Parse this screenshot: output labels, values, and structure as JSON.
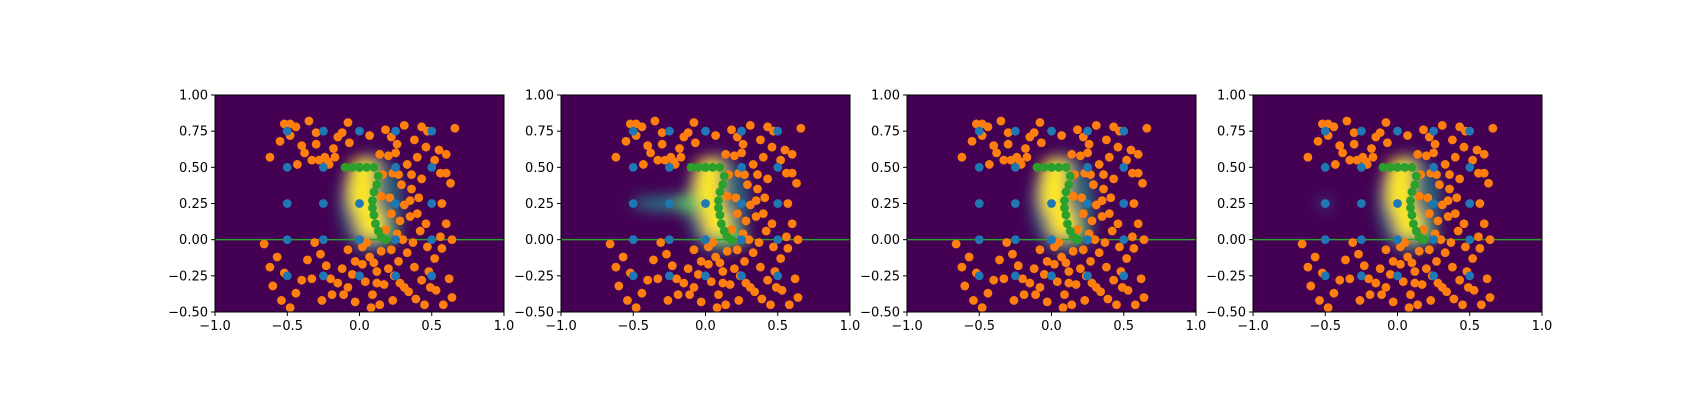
{
  "figure": {
    "panel_count": 4
  },
  "chart_data": [
    {
      "type": "scatter",
      "background": "heatmap",
      "title": "",
      "xlabel": "",
      "ylabel": "",
      "xlim": [
        -1.0,
        1.0
      ],
      "ylim": [
        -0.5,
        1.0
      ],
      "x_ticks": [
        "-1.0",
        "-0.5",
        "0.0",
        "0.5",
        "1.0"
      ],
      "y_ticks": [
        "-0.50",
        "-0.25",
        "0.00",
        "0.25",
        "0.50",
        "0.75",
        "1.00"
      ],
      "colormap": [
        "#440154",
        "#3b528b",
        "#21918c",
        "#5ec962",
        "#fde725"
      ],
      "heatmap_variant": "base",
      "baseline": {
        "y": 0.0,
        "color": "#2ca02c"
      },
      "series": [
        {
          "color": "#ff7f0e",
          "points": "orange_points"
        },
        {
          "color": "#1f77b4",
          "points": "blue_points"
        },
        {
          "color": "#2ca02c",
          "points": "green_points"
        }
      ]
    },
    {
      "type": "scatter",
      "background": "heatmap",
      "title": "",
      "xlabel": "",
      "ylabel": "",
      "xlim": [
        -1.0,
        1.0
      ],
      "ylim": [
        -0.5,
        1.0
      ],
      "x_ticks": [
        "-1.0",
        "-0.5",
        "0.0",
        "0.5",
        "1.0"
      ],
      "y_ticks": [
        "-0.50",
        "-0.25",
        "0.00",
        "0.25",
        "0.50",
        "0.75",
        "1.00"
      ],
      "colormap": [
        "#440154",
        "#3b528b",
        "#21918c",
        "#5ec962",
        "#fde725"
      ],
      "heatmap_variant": "left_arm_strong",
      "baseline": {
        "y": 0.0,
        "color": "#2ca02c"
      },
      "series": [
        {
          "color": "#ff7f0e",
          "points": "orange_points"
        },
        {
          "color": "#1f77b4",
          "points": "blue_points"
        },
        {
          "color": "#2ca02c",
          "points": "green_points"
        }
      ]
    },
    {
      "type": "scatter",
      "background": "heatmap",
      "title": "",
      "xlabel": "",
      "ylabel": "",
      "xlim": [
        -1.0,
        1.0
      ],
      "ylim": [
        -0.5,
        1.0
      ],
      "x_ticks": [
        "-1.0",
        "-0.5",
        "0.0",
        "0.5",
        "1.0"
      ],
      "y_ticks": [
        "-0.50",
        "-0.25",
        "0.00",
        "0.25",
        "0.50",
        "0.75",
        "1.00"
      ],
      "colormap": [
        "#440154",
        "#3b528b",
        "#21918c",
        "#5ec962",
        "#fde725"
      ],
      "heatmap_variant": "base",
      "baseline": {
        "y": 0.0,
        "color": "#2ca02c"
      },
      "series": [
        {
          "color": "#ff7f0e",
          "points": "orange_points"
        },
        {
          "color": "#1f77b4",
          "points": "blue_points"
        },
        {
          "color": "#2ca02c",
          "points": "green_points"
        }
      ]
    },
    {
      "type": "scatter",
      "background": "heatmap",
      "title": "",
      "xlabel": "",
      "ylabel": "",
      "xlim": [
        -1.0,
        1.0
      ],
      "ylim": [
        -0.5,
        1.0
      ],
      "x_ticks": [
        "-1.0",
        "-0.5",
        "0.0",
        "0.5",
        "1.0"
      ],
      "y_ticks": [
        "-0.50",
        "-0.25",
        "0.00",
        "0.25",
        "0.50",
        "0.75",
        "1.00"
      ],
      "colormap": [
        "#440154",
        "#3b528b",
        "#21918c",
        "#5ec962",
        "#fde725"
      ],
      "heatmap_variant": "left_spot",
      "baseline": {
        "y": 0.0,
        "color": "#2ca02c"
      },
      "series": [
        {
          "color": "#ff7f0e",
          "points": "orange_points"
        },
        {
          "color": "#1f77b4",
          "points": "blue_points"
        },
        {
          "color": "#2ca02c",
          "points": "green_points"
        }
      ]
    }
  ],
  "point_sets": {
    "blue_points": [
      [
        -0.5,
        0.75
      ],
      [
        -0.5,
        0.5
      ],
      [
        -0.5,
        0.25
      ],
      [
        -0.5,
        0.0
      ],
      [
        -0.5,
        -0.25
      ],
      [
        -0.25,
        0.75
      ],
      [
        -0.25,
        0.5
      ],
      [
        -0.25,
        0.25
      ],
      [
        -0.25,
        0.0
      ],
      [
        -0.25,
        -0.25
      ],
      [
        0.0,
        0.75
      ],
      [
        0.0,
        0.5
      ],
      [
        0.0,
        0.25
      ],
      [
        0.0,
        0.0
      ],
      [
        0.0,
        -0.25
      ],
      [
        0.25,
        0.75
      ],
      [
        0.25,
        0.5
      ],
      [
        0.25,
        0.25
      ],
      [
        0.25,
        0.0
      ],
      [
        0.25,
        -0.25
      ],
      [
        0.5,
        0.75
      ],
      [
        0.5,
        0.5
      ],
      [
        0.5,
        0.25
      ],
      [
        0.5,
        0.0
      ],
      [
        0.5,
        -0.25
      ]
    ],
    "green_points": [
      [
        -0.1,
        0.5
      ],
      [
        -0.05,
        0.5
      ],
      [
        0.0,
        0.5
      ],
      [
        0.05,
        0.5
      ],
      [
        0.1,
        0.5
      ],
      [
        0.13,
        0.44
      ],
      [
        0.12,
        0.38
      ],
      [
        0.1,
        0.33
      ],
      [
        0.09,
        0.27
      ],
      [
        0.09,
        0.22
      ],
      [
        0.1,
        0.17
      ],
      [
        0.11,
        0.11
      ],
      [
        0.13,
        0.06
      ],
      [
        0.15,
        0.02
      ],
      [
        0.18,
        0.0
      ]
    ],
    "orange_points": [
      [
        -0.62,
        0.57
      ],
      [
        -0.55,
        0.68
      ],
      [
        -0.52,
        0.8
      ],
      [
        -0.48,
        0.72
      ],
      [
        -0.43,
        0.52
      ],
      [
        -0.48,
        0.8
      ],
      [
        -0.44,
        0.78
      ],
      [
        -0.4,
        0.65
      ],
      [
        -0.35,
        0.82
      ],
      [
        -0.3,
        0.74
      ],
      [
        -0.28,
        0.55
      ],
      [
        -0.22,
        0.54
      ],
      [
        -0.18,
        0.63
      ],
      [
        -0.15,
        0.71
      ],
      [
        -0.21,
        0.52
      ],
      [
        -0.24,
        0.57
      ],
      [
        -0.17,
        0.57
      ],
      [
        -0.12,
        0.74
      ],
      [
        -0.08,
        0.81
      ],
      [
        -0.07,
        0.67
      ],
      [
        0.07,
        0.72
      ],
      [
        0.14,
        0.59
      ],
      [
        0.22,
        0.71
      ],
      [
        0.25,
        0.6
      ],
      [
        0.26,
        0.66
      ],
      [
        0.27,
        0.45
      ],
      [
        0.31,
        0.79
      ],
      [
        0.33,
        0.52
      ],
      [
        0.38,
        0.69
      ],
      [
        0.4,
        0.57
      ],
      [
        0.43,
        0.78
      ],
      [
        0.46,
        0.64
      ],
      [
        0.47,
        0.75
      ],
      [
        0.52,
        0.55
      ],
      [
        0.55,
        0.62
      ],
      [
        0.56,
        0.46
      ],
      [
        0.6,
        0.59
      ],
      [
        0.6,
        0.46
      ],
      [
        0.66,
        0.77
      ],
      [
        0.63,
        0.39
      ],
      [
        0.2,
        0.58
      ],
      [
        0.23,
        0.46
      ],
      [
        0.16,
        0.45
      ],
      [
        0.29,
        0.38
      ],
      [
        0.36,
        0.35
      ],
      [
        0.31,
        0.24
      ],
      [
        0.28,
        0.13
      ],
      [
        0.41,
        0.29
      ],
      [
        0.46,
        0.11
      ],
      [
        0.42,
        0.06
      ],
      [
        0.35,
        0.16
      ],
      [
        0.21,
        0.29
      ],
      [
        0.22,
        0.18
      ],
      [
        0.18,
        0.07
      ],
      [
        0.26,
        0.04
      ],
      [
        0.3,
        0.0
      ],
      [
        0.37,
        -0.02
      ],
      [
        0.47,
        -0.05
      ],
      [
        0.52,
        -0.13
      ],
      [
        0.57,
        -0.06
      ],
      [
        0.6,
        0.11
      ],
      [
        0.64,
        0.0
      ],
      [
        0.57,
        0.25
      ],
      [
        0.43,
        0.42
      ],
      [
        0.36,
        0.45
      ],
      [
        0.22,
        -0.07
      ],
      [
        0.27,
        -0.15
      ],
      [
        0.33,
        -0.09
      ],
      [
        0.38,
        -0.19
      ],
      [
        0.43,
        -0.28
      ],
      [
        0.48,
        -0.22
      ],
      [
        0.53,
        -0.35
      ],
      [
        0.58,
        -0.45
      ],
      [
        0.62,
        -0.27
      ],
      [
        0.64,
        -0.4
      ],
      [
        0.34,
        -0.36
      ],
      [
        0.28,
        -0.3
      ],
      [
        0.23,
        -0.42
      ],
      [
        0.17,
        -0.31
      ],
      [
        0.12,
        -0.22
      ],
      [
        0.07,
        -0.12
      ],
      [
        0.02,
        -0.05
      ],
      [
        -0.03,
        -0.15
      ],
      [
        -0.08,
        -0.07
      ],
      [
        -0.12,
        -0.2
      ],
      [
        -0.15,
        -0.3
      ],
      [
        -0.19,
        -0.38
      ],
      [
        -0.23,
        -0.18
      ],
      [
        -0.27,
        -0.1
      ],
      [
        -0.31,
        -0.02
      ],
      [
        -0.36,
        -0.14
      ],
      [
        -0.4,
        -0.28
      ],
      [
        -0.44,
        -0.37
      ],
      [
        -0.48,
        -0.47
      ],
      [
        -0.52,
        -0.23
      ],
      [
        -0.57,
        -0.12
      ],
      [
        -0.62,
        -0.19
      ],
      [
        -0.66,
        -0.03
      ],
      [
        -0.6,
        -0.32
      ],
      [
        -0.54,
        -0.42
      ],
      [
        -0.33,
        -0.27
      ],
      [
        -0.26,
        -0.42
      ],
      [
        -0.08,
        -0.33
      ],
      [
        -0.03,
        -0.43
      ],
      [
        0.04,
        -0.29
      ],
      [
        0.09,
        -0.38
      ],
      [
        0.14,
        -0.45
      ],
      [
        0.2,
        -0.2
      ],
      [
        0.05,
        -0.02
      ],
      [
        0.1,
        -0.16
      ],
      [
        0.15,
        -0.08
      ],
      [
        0.24,
        -0.25
      ],
      [
        0.31,
        -0.33
      ],
      [
        0.39,
        -0.41
      ],
      [
        0.45,
        -0.45
      ],
      [
        0.12,
        -0.3
      ],
      [
        -0.05,
        -0.24
      ],
      [
        -0.11,
        -0.38
      ],
      [
        0.02,
        -0.17
      ],
      [
        0.08,
        -0.47
      ],
      [
        -0.38,
        0.6
      ],
      [
        -0.33,
        0.55
      ],
      [
        -0.3,
        0.66
      ],
      [
        0.18,
        0.76
      ],
      [
        0.35,
        0.27
      ],
      [
        0.15,
        0.3
      ],
      [
        0.4,
        0.18
      ],
      [
        -0.2,
        -0.27
      ],
      [
        0.56,
        0.02
      ],
      [
        0.49,
        -0.33
      ]
    ]
  }
}
